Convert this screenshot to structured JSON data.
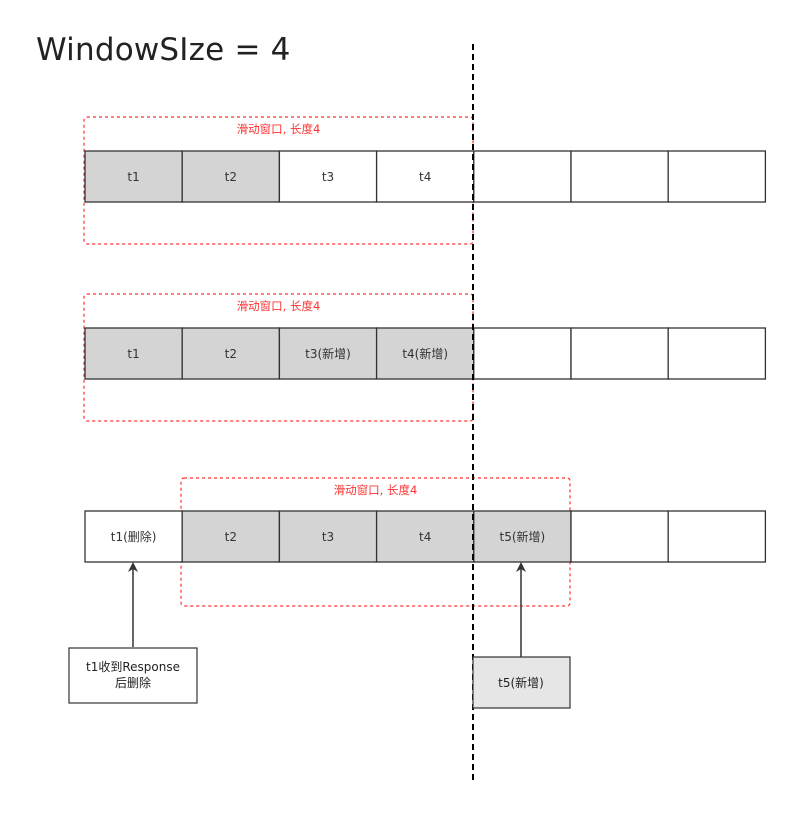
{
  "title": "WindowSIze = 4",
  "colors": {
    "window_border": "#ff3333",
    "cell_border": "#333333",
    "cell_filled": "#d4d4d4",
    "cell_empty": "#ffffff",
    "note_filled": "#e6e6e6",
    "divider": "#000000",
    "arrow": "#333333"
  },
  "rows": [
    {
      "window_label": "滑动窗口, 长度4",
      "cells": [
        {
          "label": "t1",
          "filled": true
        },
        {
          "label": "t2",
          "filled": true
        },
        {
          "label": "t3",
          "filled": false
        },
        {
          "label": "t4",
          "filled": false
        },
        {
          "label": "",
          "filled": false
        },
        {
          "label": "",
          "filled": false
        },
        {
          "label": "",
          "filled": false
        }
      ]
    },
    {
      "window_label": "滑动窗口, 长度4",
      "cells": [
        {
          "label": "t1",
          "filled": true
        },
        {
          "label": "t2",
          "filled": true
        },
        {
          "label": "t3(新增)",
          "filled": true
        },
        {
          "label": "t4(新增)",
          "filled": true
        },
        {
          "label": "",
          "filled": false
        },
        {
          "label": "",
          "filled": false
        },
        {
          "label": "",
          "filled": false
        }
      ]
    },
    {
      "window_label": "滑动窗口, 长度4",
      "cells": [
        {
          "label": "t1(删除)",
          "filled": false
        },
        {
          "label": "t2",
          "filled": true
        },
        {
          "label": "t3",
          "filled": true
        },
        {
          "label": "t4",
          "filled": true
        },
        {
          "label": "t5(新增)",
          "filled": true
        },
        {
          "label": "",
          "filled": false
        },
        {
          "label": "",
          "filled": false
        }
      ]
    }
  ],
  "notes": {
    "left": {
      "lines": [
        "t1收到Response",
        "后删除"
      ]
    },
    "right": {
      "lines": [
        "t5(新增)"
      ]
    }
  }
}
